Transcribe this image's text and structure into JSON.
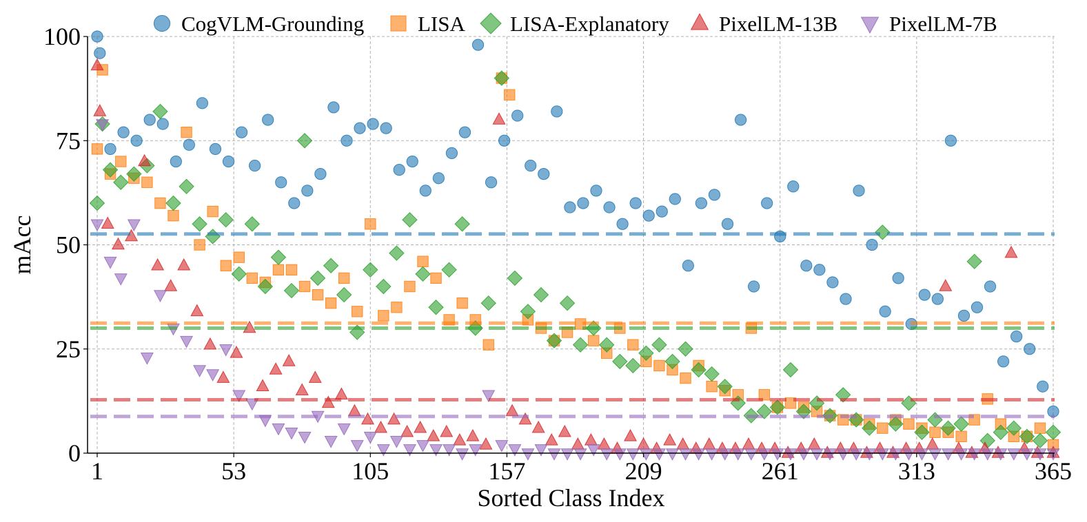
{
  "chart_data": {
    "type": "scatter",
    "xlabel": "Sorted Class Index",
    "ylabel": "mAcc",
    "xlim": [
      1,
      365
    ],
    "ylim": [
      0,
      100
    ],
    "x_ticks": [
      1,
      53,
      105,
      157,
      209,
      261,
      313,
      365
    ],
    "y_ticks": [
      0,
      25,
      50,
      75,
      100
    ],
    "grid": true,
    "legend_position": "top",
    "series": [
      {
        "name": "CogVLM-Grounding",
        "color": "#1f77b4",
        "marker": "circle",
        "mean": 52.6,
        "x": [
          1,
          2,
          6,
          11,
          16,
          21,
          26,
          31,
          36,
          41,
          46,
          51,
          56,
          61,
          66,
          71,
          76,
          81,
          86,
          91,
          96,
          101,
          106,
          111,
          116,
          121,
          126,
          131,
          136,
          141,
          146,
          151,
          156,
          161,
          166,
          171,
          176,
          181,
          186,
          191,
          196,
          201,
          206,
          211,
          216,
          221,
          226,
          231,
          236,
          241,
          246,
          251,
          256,
          261,
          266,
          271,
          276,
          281,
          286,
          291,
          296,
          301,
          306,
          311,
          316,
          321,
          326,
          331,
          336,
          341,
          346,
          351,
          356,
          361,
          365
        ],
        "values": [
          100,
          96,
          73,
          77,
          75,
          80,
          79,
          70,
          74,
          84,
          73,
          70,
          77,
          69,
          80,
          65,
          60,
          63,
          67,
          83,
          75,
          78,
          79,
          78,
          68,
          70,
          63,
          66,
          72,
          77,
          98,
          65,
          75,
          81,
          69,
          67,
          82,
          59,
          60,
          63,
          59,
          55,
          60,
          57,
          58,
          61,
          45,
          60,
          62,
          55,
          80,
          40,
          60,
          52,
          64,
          45,
          44,
          41,
          37,
          63,
          50,
          34,
          42,
          31,
          38,
          37,
          75,
          33,
          35,
          40,
          22,
          28,
          25,
          16,
          10
        ]
      },
      {
        "name": "LISA",
        "color": "#ff7f0e",
        "marker": "square",
        "mean": 31.2,
        "x": [
          1,
          3,
          6,
          10,
          15,
          20,
          25,
          30,
          35,
          40,
          45,
          50,
          55,
          60,
          65,
          70,
          75,
          80,
          85,
          90,
          95,
          100,
          105,
          110,
          115,
          120,
          125,
          130,
          135,
          140,
          145,
          150,
          155,
          158,
          165,
          170,
          175,
          180,
          185,
          190,
          195,
          200,
          205,
          210,
          215,
          220,
          225,
          230,
          235,
          240,
          245,
          250,
          255,
          260,
          265,
          270,
          275,
          280,
          285,
          290,
          295,
          300,
          305,
          310,
          315,
          320,
          325,
          330,
          335,
          340,
          345,
          350,
          355,
          360,
          365
        ],
        "values": [
          73,
          92,
          67,
          70,
          66,
          65,
          60,
          57,
          77,
          50,
          58,
          45,
          47,
          42,
          41,
          44,
          44,
          40,
          38,
          36,
          42,
          34,
          55,
          33,
          35,
          40,
          46,
          42,
          32,
          36,
          32,
          26,
          90,
          86,
          32,
          30,
          27,
          29,
          31,
          27,
          24,
          30,
          26,
          22,
          21,
          20,
          18,
          21,
          16,
          15,
          14,
          30,
          14,
          11,
          12,
          11,
          10,
          9,
          8,
          8,
          7,
          6,
          8,
          7,
          6,
          5,
          5,
          4,
          8,
          13,
          7,
          4,
          4,
          6,
          2
        ]
      },
      {
        "name": "LISA-Explanatory",
        "color": "#2ca02c",
        "marker": "diamond",
        "mean": 30.0,
        "x": [
          1,
          3,
          6,
          10,
          15,
          20,
          25,
          30,
          35,
          40,
          45,
          50,
          55,
          60,
          65,
          70,
          75,
          80,
          85,
          90,
          95,
          100,
          105,
          110,
          115,
          120,
          125,
          130,
          135,
          140,
          145,
          150,
          155,
          160,
          165,
          170,
          175,
          180,
          185,
          190,
          195,
          200,
          205,
          210,
          215,
          220,
          225,
          230,
          235,
          240,
          245,
          250,
          255,
          260,
          265,
          270,
          275,
          280,
          285,
          290,
          295,
          300,
          305,
          310,
          315,
          320,
          325,
          330,
          335,
          340,
          345,
          350,
          355,
          360,
          365
        ],
        "values": [
          60,
          79,
          68,
          65,
          67,
          69,
          82,
          60,
          64,
          55,
          52,
          56,
          43,
          55,
          40,
          47,
          39,
          75,
          42,
          45,
          38,
          29,
          44,
          40,
          48,
          56,
          43,
          35,
          44,
          55,
          30,
          36,
          90,
          42,
          34,
          38,
          27,
          36,
          26,
          30,
          26,
          22,
          21,
          24,
          26,
          22,
          25,
          20,
          19,
          16,
          12,
          9,
          10,
          11,
          20,
          10,
          12,
          9,
          14,
          8,
          6,
          53,
          7,
          12,
          5,
          8,
          6,
          7,
          46,
          3,
          5,
          6,
          4,
          3,
          5
        ]
      },
      {
        "name": "PixelLM-13B",
        "color": "#d62728",
        "marker": "triangle-up",
        "mean": 12.8,
        "x": [
          1,
          2,
          5,
          9,
          14,
          19,
          24,
          29,
          34,
          39,
          44,
          49,
          54,
          59,
          64,
          69,
          74,
          79,
          84,
          89,
          94,
          99,
          104,
          109,
          114,
          119,
          124,
          129,
          134,
          139,
          144,
          149,
          154,
          159,
          164,
          169,
          174,
          179,
          184,
          189,
          194,
          199,
          204,
          209,
          214,
          219,
          224,
          229,
          234,
          239,
          244,
          249,
          254,
          259,
          264,
          269,
          274,
          279,
          284,
          289,
          294,
          299,
          304,
          309,
          314,
          319,
          324,
          329,
          334,
          339,
          344,
          349,
          354,
          359,
          365
        ],
        "values": [
          93,
          82,
          55,
          50,
          52,
          70,
          45,
          40,
          45,
          34,
          26,
          18,
          24,
          30,
          16,
          20,
          22,
          15,
          18,
          12,
          14,
          10,
          8,
          6,
          8,
          5,
          6,
          4,
          5,
          3,
          4,
          2,
          80,
          10,
          8,
          6,
          3,
          5,
          2,
          3,
          2,
          1,
          4,
          2,
          1,
          3,
          2,
          1,
          2,
          1,
          1,
          2,
          1,
          1,
          0,
          1,
          2,
          0,
          1,
          1,
          0,
          1,
          0,
          1,
          1,
          2,
          40,
          1,
          0,
          1,
          0,
          48,
          1,
          0,
          0
        ]
      },
      {
        "name": "PixelLM-7B",
        "color": "#9467bd",
        "marker": "triangle-down",
        "mean": 8.8,
        "x": [
          1,
          3,
          6,
          10,
          15,
          20,
          25,
          30,
          35,
          40,
          45,
          50,
          55,
          60,
          65,
          70,
          75,
          80,
          85,
          90,
          95,
          100,
          105,
          110,
          115,
          120,
          125,
          130,
          135,
          140,
          145,
          150,
          155,
          160,
          165,
          170,
          175,
          180,
          185,
          190,
          195,
          200,
          205,
          210,
          215,
          220,
          225,
          230,
          235,
          240,
          245,
          250,
          255,
          260,
          265,
          270,
          275,
          280,
          285,
          290,
          295,
          300,
          305,
          310,
          315,
          320,
          325,
          330,
          335,
          340,
          345,
          350,
          355,
          360,
          365
        ],
        "values": [
          55,
          79,
          46,
          42,
          55,
          23,
          38,
          30,
          27,
          20,
          19,
          25,
          14,
          12,
          8,
          6,
          5,
          4,
          9,
          3,
          6,
          2,
          4,
          1,
          3,
          1,
          2,
          1,
          1,
          0,
          1,
          14,
          2,
          1,
          0,
          1,
          0,
          0,
          0,
          1,
          0,
          0,
          0,
          0,
          0,
          0,
          0,
          0,
          0,
          0,
          0,
          0,
          0,
          0,
          0,
          0,
          0,
          0,
          0,
          0,
          0,
          0,
          0,
          0,
          0,
          0,
          0,
          0,
          0,
          0,
          0,
          0,
          0,
          0,
          0
        ]
      }
    ]
  }
}
